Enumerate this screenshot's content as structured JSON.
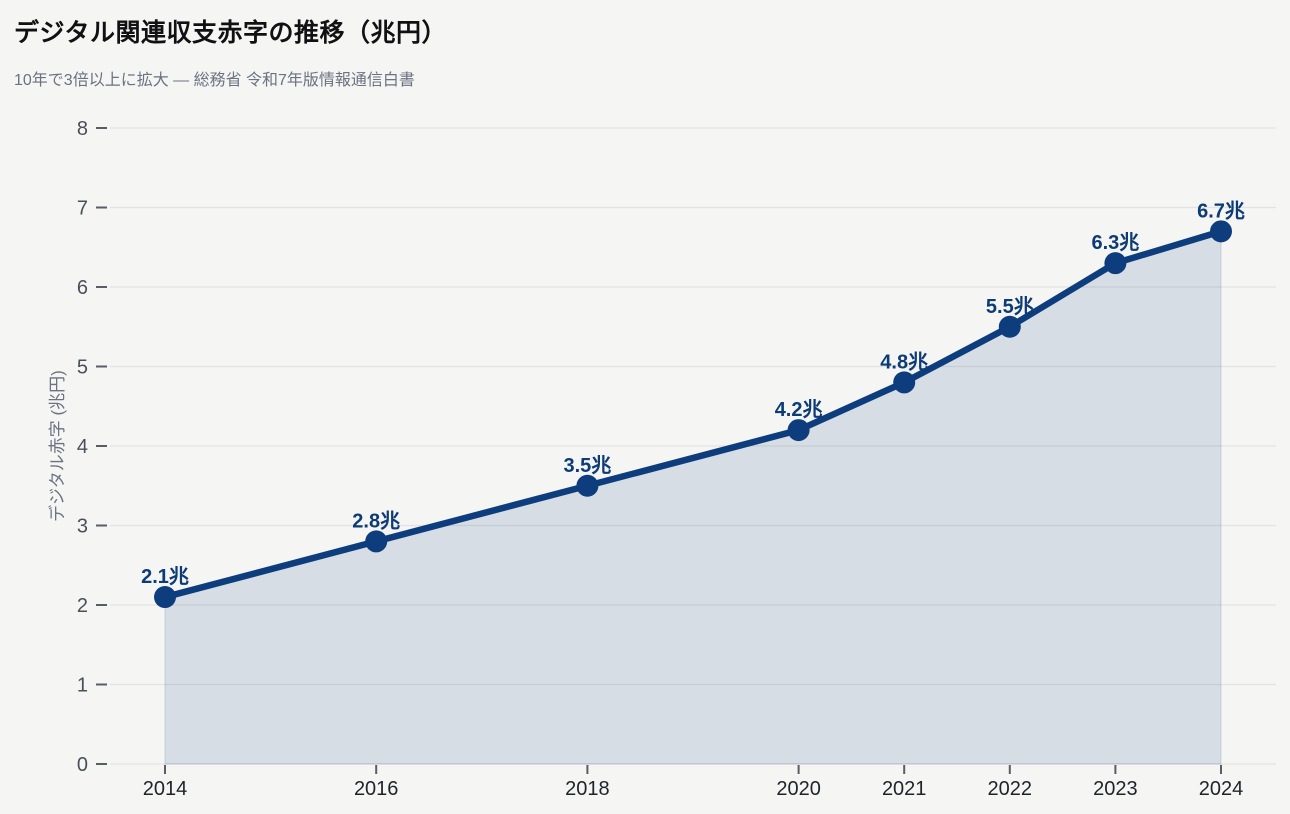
{
  "header": {
    "title": "デジタル関連収支赤字の推移（兆円）",
    "subtitle": "10年で3倍以上に拡大 — 総務省 令和7年版情報通信白書"
  },
  "chart_data": {
    "type": "area",
    "title": "デジタル関連収支赤字の推移（兆円）",
    "subtitle": "10年で3倍以上に拡大 — 総務省 令和7年版情報通信白書",
    "x": [
      2014,
      2016,
      2018,
      2020,
      2021,
      2022,
      2023,
      2024
    ],
    "values": [
      2.1,
      2.8,
      3.5,
      4.2,
      4.8,
      5.5,
      6.3,
      6.7
    ],
    "point_labels": [
      "2.1兆",
      "2.8兆",
      "3.5兆",
      "4.2兆",
      "4.8兆",
      "5.5兆",
      "6.3兆",
      "6.7兆"
    ],
    "xlabel": "",
    "ylabel": "デジタル赤字 (兆円)",
    "xlim": [
      2014,
      2024
    ],
    "ylim": [
      0,
      8
    ],
    "yticks": [
      0,
      1,
      2,
      3,
      4,
      5,
      6,
      7,
      8
    ],
    "xticks": [
      2014,
      2016,
      2018,
      2020,
      2021,
      2022,
      2023,
      2024
    ],
    "grid": true,
    "legend": false,
    "colors": {
      "line": "#0e3d7d",
      "point": "#0e3d7d",
      "fill": "rgba(14,61,125,0.13)",
      "fill_edge": "rgba(14,61,125,0.10)",
      "point_label": "#0d3b76",
      "grid": "#e3e3e2",
      "tick_mark": "#585d66",
      "y_tick_label": "#4a4f5a",
      "x_tick_label": "#1f2329",
      "axis_label": "#6b7280",
      "background": "#f5f5f4",
      "title": "#111114",
      "subtitle": "#6b7280"
    }
  }
}
